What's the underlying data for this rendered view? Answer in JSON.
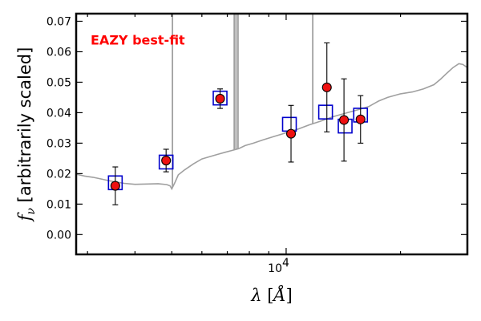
{
  "chart_data": {
    "type": "scatter",
    "annotation": "EAZY best-fit",
    "colors": {
      "annotation": "#ff0000",
      "template": "#a0a0a0",
      "model_marker": "#0000cc",
      "observed_fill": "#ee1111",
      "errorbar": "#000000"
    },
    "xlabel": {
      "lambda": "λ",
      "open": " [",
      "unit": "Å",
      "close": "]"
    },
    "ylabel": {
      "f": "f",
      "sub": "ν",
      "text": " [arbitrarily scaled]"
    },
    "x_scale": "log",
    "xlim": [
      2800,
      30000
    ],
    "ylim": [
      -0.0065,
      0.0725
    ],
    "x_tick_label": {
      "base": "10",
      "exp": "4"
    },
    "x_major_ticks": [
      10000
    ],
    "x_minor_ticks": [
      3000,
      4000,
      5000,
      6000,
      7000,
      8000,
      9000,
      20000
    ],
    "y_ticks": [
      "0.00",
      "0.01",
      "0.02",
      "0.03",
      "0.04",
      "0.05",
      "0.06",
      "0.07"
    ],
    "template": [
      [
        2800,
        0.0198
      ],
      [
        2950,
        0.0192
      ],
      [
        3100,
        0.0188
      ],
      [
        3300,
        0.0181
      ],
      [
        3500,
        0.0174
      ],
      [
        3750,
        0.0168
      ],
      [
        4000,
        0.0165
      ],
      [
        4300,
        0.0166
      ],
      [
        4600,
        0.0167
      ],
      [
        4850,
        0.0164
      ],
      [
        4950,
        0.016
      ],
      [
        5000,
        0.015
      ],
      [
        5100,
        0.0172
      ],
      [
        5200,
        0.0196
      ],
      [
        5400,
        0.0212
      ],
      [
        5700,
        0.0232
      ],
      [
        6000,
        0.0248
      ],
      [
        6300,
        0.0256
      ],
      [
        6600,
        0.0263
      ],
      [
        6900,
        0.027
      ],
      [
        7200,
        0.0276
      ],
      [
        7500,
        0.0282
      ],
      [
        7800,
        0.0292
      ],
      [
        8200,
        0.03
      ],
      [
        8700,
        0.0311
      ],
      [
        9300,
        0.0322
      ],
      [
        10000,
        0.0334
      ],
      [
        10800,
        0.0347
      ],
      [
        11500,
        0.036
      ],
      [
        12300,
        0.0372
      ],
      [
        13300,
        0.0387
      ],
      [
        14500,
        0.04
      ],
      [
        15500,
        0.041
      ],
      [
        16500,
        0.042
      ],
      [
        17500,
        0.0438
      ],
      [
        18500,
        0.045
      ],
      [
        20000,
        0.0462
      ],
      [
        21500,
        0.0468
      ],
      [
        23000,
        0.0478
      ],
      [
        24500,
        0.0492
      ],
      [
        25500,
        0.051
      ],
      [
        26500,
        0.053
      ],
      [
        27500,
        0.0548
      ],
      [
        28500,
        0.0561
      ],
      [
        29200,
        0.0558
      ],
      [
        30000,
        0.0548
      ]
    ],
    "emission_lines": [
      {
        "x": 5020,
        "top": 0.0725
      },
      {
        "x": 7300,
        "top": 0.0725
      },
      {
        "x": 7380,
        "top": 0.0725
      },
      {
        "x": 7470,
        "top": 0.0725
      },
      {
        "x": 11750,
        "top": 0.0725
      }
    ],
    "model_points": [
      {
        "x": 3550,
        "y": 0.017
      },
      {
        "x": 4830,
        "y": 0.0238
      },
      {
        "x": 6700,
        "y": 0.0448
      },
      {
        "x": 10200,
        "y": 0.0362
      },
      {
        "x": 12700,
        "y": 0.0402
      },
      {
        "x": 14300,
        "y": 0.0356
      },
      {
        "x": 15700,
        "y": 0.0392
      }
    ],
    "observed_points": [
      {
        "x": 3550,
        "y": 0.016,
        "err": 0.0062
      },
      {
        "x": 4830,
        "y": 0.0243,
        "err": 0.0037
      },
      {
        "x": 6700,
        "y": 0.0446,
        "err": 0.0032
      },
      {
        "x": 10300,
        "y": 0.0331,
        "err": 0.0093
      },
      {
        "x": 12800,
        "y": 0.0483,
        "err": 0.0146
      },
      {
        "x": 14200,
        "y": 0.0376,
        "err": 0.0135
      },
      {
        "x": 15700,
        "y": 0.0378,
        "err": 0.0078
      }
    ]
  }
}
